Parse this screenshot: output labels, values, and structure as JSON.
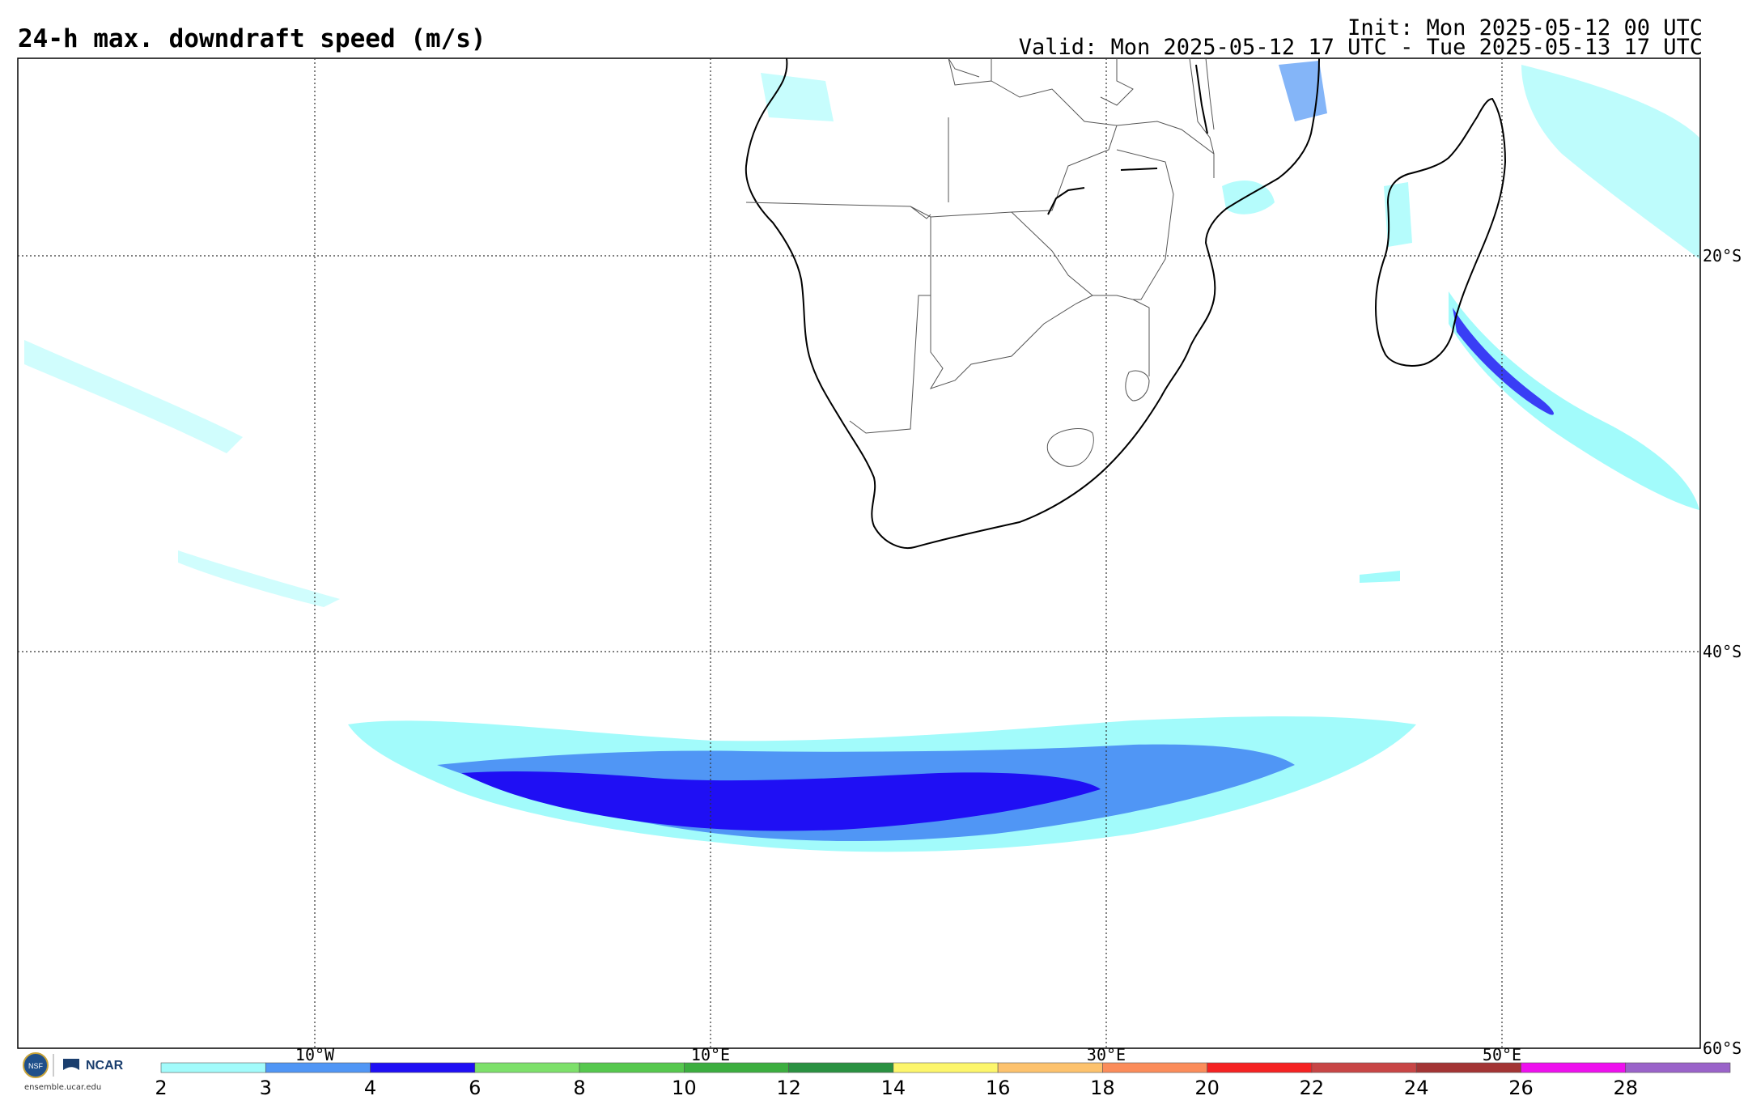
{
  "header": {
    "title": "24-h max. downdraft speed (m/s)",
    "init": "Init: Mon 2025-05-12 00 UTC",
    "valid": "Valid: Mon 2025-05-12 17 UTC - Tue 2025-05-13 17 UTC"
  },
  "map": {
    "lat_labels": [
      "20°S",
      "40°S",
      "60°S"
    ],
    "lon_labels": [
      "10°W",
      "10°E",
      "30°E",
      "50°E"
    ],
    "outline_color": "#000000",
    "grid_style": "dotted"
  },
  "colorbar": {
    "ticks": [
      "2",
      "3",
      "4",
      "6",
      "8",
      "10",
      "12",
      "14",
      "16",
      "18",
      "20",
      "22",
      "24",
      "26",
      "28"
    ],
    "colors": [
      "#a2fbfb",
      "#5096f5",
      "#1f0ff4",
      "#7de06a",
      "#56c84e",
      "#3cae3f",
      "#2a9141",
      "#fdf66b",
      "#fdc26d",
      "#fb8c5a",
      "#f52222",
      "#c84545",
      "#a33434",
      "#ee10ee",
      "#9a63c9"
    ]
  },
  "logo": {
    "org": "NCAR",
    "site": "ensemble.ucar.edu"
  }
}
